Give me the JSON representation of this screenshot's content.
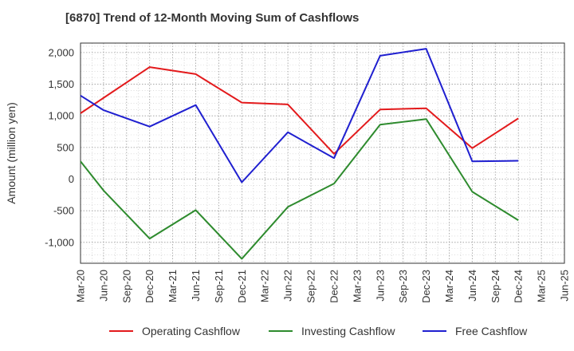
{
  "chart_data": {
    "type": "line",
    "title": "[6870]  Trend of 12-Month Moving Sum of Cashflows",
    "xlabel": "",
    "ylabel": "Amount (million yen)",
    "categories": [
      "Mar-20",
      "Jun-20",
      "Sep-20",
      "Dec-20",
      "Mar-21",
      "Jun-21",
      "Sep-21",
      "Dec-21",
      "Mar-22",
      "Jun-22",
      "Sep-22",
      "Dec-22",
      "Mar-23",
      "Jun-23",
      "Sep-23",
      "Dec-23",
      "Mar-24",
      "Jun-24",
      "Sep-24",
      "Dec-24",
      "Mar-25",
      "Jun-25"
    ],
    "ylim": [
      -1330,
      2150
    ],
    "yticks": [
      2000,
      1500,
      1000,
      500,
      0,
      -500,
      -1000
    ],
    "ytick_labels": [
      "2,000",
      "1,500",
      "1,000",
      "500",
      "0",
      "-500",
      "-1,000"
    ],
    "grid": true,
    "legend_position": "bottom",
    "series": [
      {
        "name": "Operating Cashflow",
        "color": "#e31a1c",
        "values": [
          1040,
          null,
          null,
          1770,
          null,
          1660,
          null,
          1210,
          null,
          1180,
          null,
          400,
          null,
          1100,
          null,
          1120,
          null,
          490,
          null,
          960,
          null,
          null
        ]
      },
      {
        "name": "Investing Cashflow",
        "color": "#2e8b2e",
        "values": [
          280,
          -180,
          null,
          -940,
          null,
          -490,
          null,
          -1260,
          null,
          -440,
          null,
          -70,
          null,
          860,
          null,
          950,
          null,
          -200,
          null,
          -650,
          null,
          null
        ]
      },
      {
        "name": "Free Cashflow",
        "color": "#1f1fd0",
        "values": [
          1320,
          1090,
          null,
          830,
          null,
          1170,
          null,
          -50,
          null,
          740,
          null,
          330,
          null,
          1950,
          null,
          2060,
          null,
          280,
          null,
          290,
          null,
          null
        ]
      }
    ]
  }
}
